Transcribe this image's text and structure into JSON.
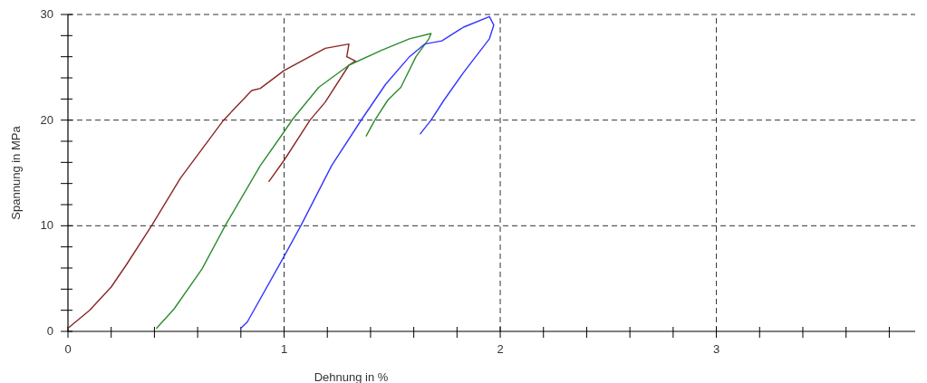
{
  "chart_data": {
    "type": "line",
    "xlabel": "Dehnung in %",
    "ylabel": "Spannung in MPa",
    "xlim": [
      0,
      3.92
    ],
    "ylim": [
      0,
      30
    ],
    "xticks": [
      0,
      {
        "value": 0.2,
        "label": null
      },
      {
        "value": 0.4,
        "label": null
      },
      {
        "value": 0.6,
        "label": null
      },
      {
        "value": 0.8,
        "label": null
      },
      1,
      {
        "value": 1.2,
        "label": null
      },
      {
        "value": 1.4,
        "label": null
      },
      {
        "value": 1.6,
        "label": null
      },
      {
        "value": 1.8,
        "label": null
      },
      2,
      {
        "value": 2.2,
        "label": null
      },
      {
        "value": 2.4,
        "label": null
      },
      {
        "value": 2.6,
        "label": null
      },
      {
        "value": 2.8,
        "label": null
      },
      3,
      {
        "value": 3.2,
        "label": null
      },
      {
        "value": 3.4,
        "label": null
      },
      {
        "value": 3.6,
        "label": null
      },
      {
        "value": 3.8,
        "label": null
      }
    ],
    "yticks": [
      0,
      {
        "value": 2,
        "label": null
      },
      {
        "value": 4,
        "label": null
      },
      {
        "value": 6,
        "label": null
      },
      {
        "value": 8,
        "label": null
      },
      10,
      {
        "value": 12,
        "label": null
      },
      {
        "value": 14,
        "label": null
      },
      {
        "value": 16,
        "label": null
      },
      {
        "value": 18,
        "label": null
      },
      20,
      {
        "value": 22,
        "label": null
      },
      {
        "value": 24,
        "label": null
      },
      {
        "value": 26,
        "label": null
      },
      {
        "value": 28,
        "label": null
      },
      30
    ],
    "grid": true,
    "marker": "none",
    "series": [
      {
        "color": "#8b2525",
        "x": [
          0,
          0.1,
          0.2,
          0.27,
          0.39,
          0.52,
          0.72,
          0.85,
          0.89,
          1.0,
          1.19,
          1.3,
          1.29,
          1.33,
          1.3,
          1.19,
          1.12,
          1.0,
          0.93
        ],
        "values": [
          0.3,
          2.0,
          4.2,
          6.3,
          10.1,
          14.5,
          20.0,
          22.8,
          23.0,
          24.7,
          26.8,
          27.2,
          26.0,
          25.6,
          25.2,
          21.7,
          20.0,
          16.2,
          14.2
        ]
      },
      {
        "color": "#2e8b2e",
        "x": [
          0.41,
          0.49,
          0.62,
          0.73,
          0.89,
          1.0,
          1.04,
          1.16,
          1.3,
          1.45,
          1.58,
          1.68,
          1.67,
          1.61,
          1.54,
          1.48,
          1.42,
          1.38
        ],
        "values": [
          0.3,
          2.1,
          5.9,
          10.1,
          15.7,
          18.9,
          20.1,
          23.1,
          25.2,
          26.6,
          27.7,
          28.2,
          27.7,
          26.0,
          23.1,
          21.9,
          20.0,
          18.5
        ]
      },
      {
        "color": "#3535ff",
        "x": [
          0.8,
          0.83,
          1.0,
          1.08,
          1.22,
          1.36,
          1.47,
          1.58,
          1.65,
          1.73,
          1.83,
          1.95,
          1.97,
          1.95,
          1.83,
          1.74,
          1.68,
          1.63
        ],
        "values": [
          0.3,
          0.9,
          7.1,
          10.1,
          15.7,
          20.1,
          23.4,
          26.0,
          27.2,
          27.5,
          28.8,
          29.8,
          29.0,
          27.7,
          24.5,
          21.9,
          20.0,
          18.7
        ]
      }
    ]
  }
}
